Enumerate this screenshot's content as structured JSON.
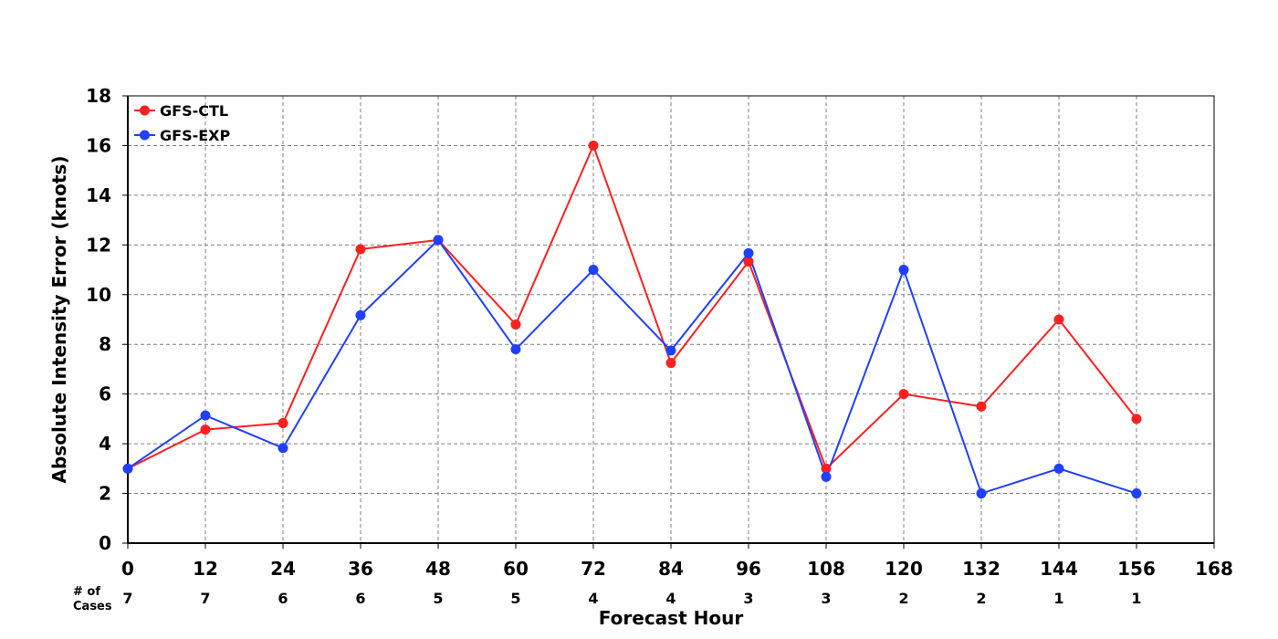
{
  "chart_data": {
    "type": "line",
    "title": "",
    "xlabel": "Forecast Hour",
    "ylabel": "Absolute Intensity Error (knots)",
    "xlim": [
      0,
      168
    ],
    "ylim": [
      0,
      18
    ],
    "x_ticks": [
      0,
      12,
      24,
      36,
      48,
      60,
      72,
      84,
      96,
      108,
      120,
      132,
      144,
      156,
      168
    ],
    "y_ticks": [
      0,
      2,
      4,
      6,
      8,
      10,
      12,
      14,
      16,
      18
    ],
    "grid": true,
    "legend_position": "top-left",
    "x": [
      0,
      12,
      24,
      36,
      48,
      60,
      72,
      84,
      96,
      108,
      120,
      132,
      144,
      156
    ],
    "series": [
      {
        "name": "GFS-CTL",
        "color": "#ff2020",
        "values": [
          3.0,
          4.57,
          4.83,
          11.83,
          12.2,
          8.8,
          16.0,
          7.25,
          11.33,
          3.0,
          6.0,
          5.5,
          9.0,
          5.0
        ]
      },
      {
        "name": "GFS-EXP",
        "color": "#2040ff",
        "values": [
          3.0,
          5.14,
          3.83,
          9.17,
          12.2,
          7.8,
          11.0,
          7.75,
          11.67,
          2.67,
          11.0,
          2.0,
          3.0,
          2.0
        ]
      }
    ],
    "cases": {
      "label_line1": "# of",
      "label_line2": "Cases",
      "values": [
        "7",
        "7",
        "6",
        "6",
        "5",
        "5",
        "4",
        "4",
        "3",
        "3",
        "2",
        "2",
        "1",
        "1"
      ]
    }
  }
}
